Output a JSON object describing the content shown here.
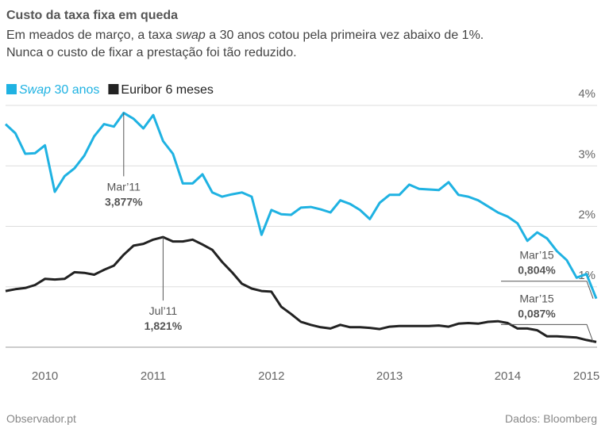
{
  "chart_data": {
    "type": "line",
    "title": "Custo da taxa fixa em queda",
    "subtitle": [
      [
        "Em meados de março, a taxa ",
        "swap",
        " a 30 anos cotou pela primeira vez abaixo de 1%."
      ],
      [
        "Nunca o custo de fixar a prestação foi tão reduzido."
      ]
    ],
    "source": "Dados: Bloomberg",
    "credit": "Observador.pt",
    "categories": [
      null,
      null,
      null,
      null,
      "2010",
      null,
      null,
      null,
      null,
      null,
      null,
      null,
      null,
      null,
      null,
      "2011",
      null,
      null,
      null,
      null,
      null,
      null,
      null,
      null,
      null,
      null,
      null,
      "2012",
      null,
      null,
      null,
      null,
      null,
      null,
      null,
      null,
      null,
      null,
      null,
      "2013",
      null,
      null,
      null,
      null,
      null,
      null,
      null,
      null,
      null,
      null,
      null,
      "2014",
      null,
      null,
      null,
      null,
      null,
      null,
      null,
      "2015",
      null
    ],
    "ylim": [
      0,
      4
    ],
    "yticks": [
      {
        "value": 1,
        "label": "1%"
      },
      {
        "value": 2,
        "label": "2%"
      },
      {
        "value": 3,
        "label": "3%"
      },
      {
        "value": 4,
        "label": "4%"
      }
    ],
    "grid": true,
    "legend": "top-left",
    "series": [
      {
        "name": "Swap 30 anos",
        "color": "#1fb2e2",
        "values": [
          3.69,
          3.54,
          3.2,
          3.21,
          3.34,
          2.57,
          2.83,
          2.96,
          3.17,
          3.49,
          3.69,
          3.65,
          3.877,
          3.78,
          3.62,
          3.84,
          3.41,
          3.2,
          2.71,
          2.71,
          2.86,
          2.56,
          2.49,
          2.53,
          2.56,
          2.49,
          1.86,
          2.27,
          2.2,
          2.19,
          2.31,
          2.32,
          2.28,
          2.23,
          2.43,
          2.37,
          2.27,
          2.12,
          2.39,
          2.52,
          2.52,
          2.69,
          2.62,
          2.61,
          2.6,
          2.73,
          2.52,
          2.49,
          2.43,
          2.33,
          2.23,
          2.16,
          2.05,
          1.76,
          1.9,
          1.8,
          1.59,
          1.44,
          1.15,
          1.21,
          0.804
        ],
        "date_labels": [
          null,
          null,
          null,
          null,
          null,
          null,
          null,
          null,
          null,
          null,
          null,
          null,
          "Mar’11",
          null,
          null,
          null,
          null,
          null,
          null,
          null,
          null,
          null,
          null,
          null,
          null,
          null,
          null,
          null,
          null,
          null,
          null,
          null,
          null,
          null,
          null,
          null,
          null,
          null,
          null,
          null,
          null,
          null,
          null,
          null,
          null,
          null,
          null,
          null,
          null,
          null,
          null,
          null,
          null,
          null,
          null,
          null,
          null,
          null,
          null,
          null,
          "Mar’15"
        ],
        "value_labels": [
          null,
          null,
          null,
          null,
          null,
          null,
          null,
          null,
          null,
          null,
          null,
          null,
          "3,877%",
          null,
          null,
          null,
          null,
          null,
          null,
          null,
          null,
          null,
          null,
          null,
          null,
          null,
          null,
          null,
          null,
          null,
          null,
          null,
          null,
          null,
          null,
          null,
          null,
          null,
          null,
          null,
          null,
          null,
          null,
          null,
          null,
          null,
          null,
          null,
          null,
          null,
          null,
          null,
          null,
          null,
          null,
          null,
          null,
          null,
          null,
          null,
          "0,804%"
        ]
      },
      {
        "name": "Euribor 6 meses",
        "color": "#222222",
        "values": [
          0.93,
          0.96,
          0.98,
          1.03,
          1.13,
          1.12,
          1.13,
          1.24,
          1.23,
          1.2,
          1.28,
          1.35,
          1.53,
          1.68,
          1.71,
          1.78,
          1.821,
          1.75,
          1.75,
          1.78,
          1.7,
          1.61,
          1.41,
          1.24,
          1.05,
          0.97,
          0.93,
          0.92,
          0.67,
          0.55,
          0.42,
          0.37,
          0.33,
          0.31,
          0.37,
          0.33,
          0.33,
          0.32,
          0.3,
          0.34,
          0.35,
          0.35,
          0.35,
          0.35,
          0.36,
          0.34,
          0.39,
          0.4,
          0.39,
          0.42,
          0.43,
          0.4,
          0.31,
          0.31,
          0.28,
          0.18,
          0.18,
          0.17,
          0.16,
          0.12,
          0.087
        ],
        "date_labels": [
          null,
          null,
          null,
          null,
          null,
          null,
          null,
          null,
          null,
          null,
          null,
          null,
          null,
          null,
          null,
          null,
          "Jul’11",
          null,
          null,
          null,
          null,
          null,
          null,
          null,
          null,
          null,
          null,
          null,
          null,
          null,
          null,
          null,
          null,
          null,
          null,
          null,
          null,
          null,
          null,
          null,
          null,
          null,
          null,
          null,
          null,
          null,
          null,
          null,
          null,
          null,
          null,
          null,
          null,
          null,
          null,
          null,
          null,
          null,
          null,
          null,
          "Mar’15"
        ],
        "value_labels": [
          null,
          null,
          null,
          null,
          null,
          null,
          null,
          null,
          null,
          null,
          null,
          null,
          null,
          null,
          null,
          null,
          "1,821%",
          null,
          null,
          null,
          null,
          null,
          null,
          null,
          null,
          null,
          null,
          null,
          null,
          null,
          null,
          null,
          null,
          null,
          null,
          null,
          null,
          null,
          null,
          null,
          null,
          null,
          null,
          null,
          null,
          null,
          null,
          null,
          null,
          null,
          null,
          null,
          null,
          null,
          null,
          null,
          null,
          null,
          null,
          null,
          "0,087%"
        ]
      }
    ]
  }
}
